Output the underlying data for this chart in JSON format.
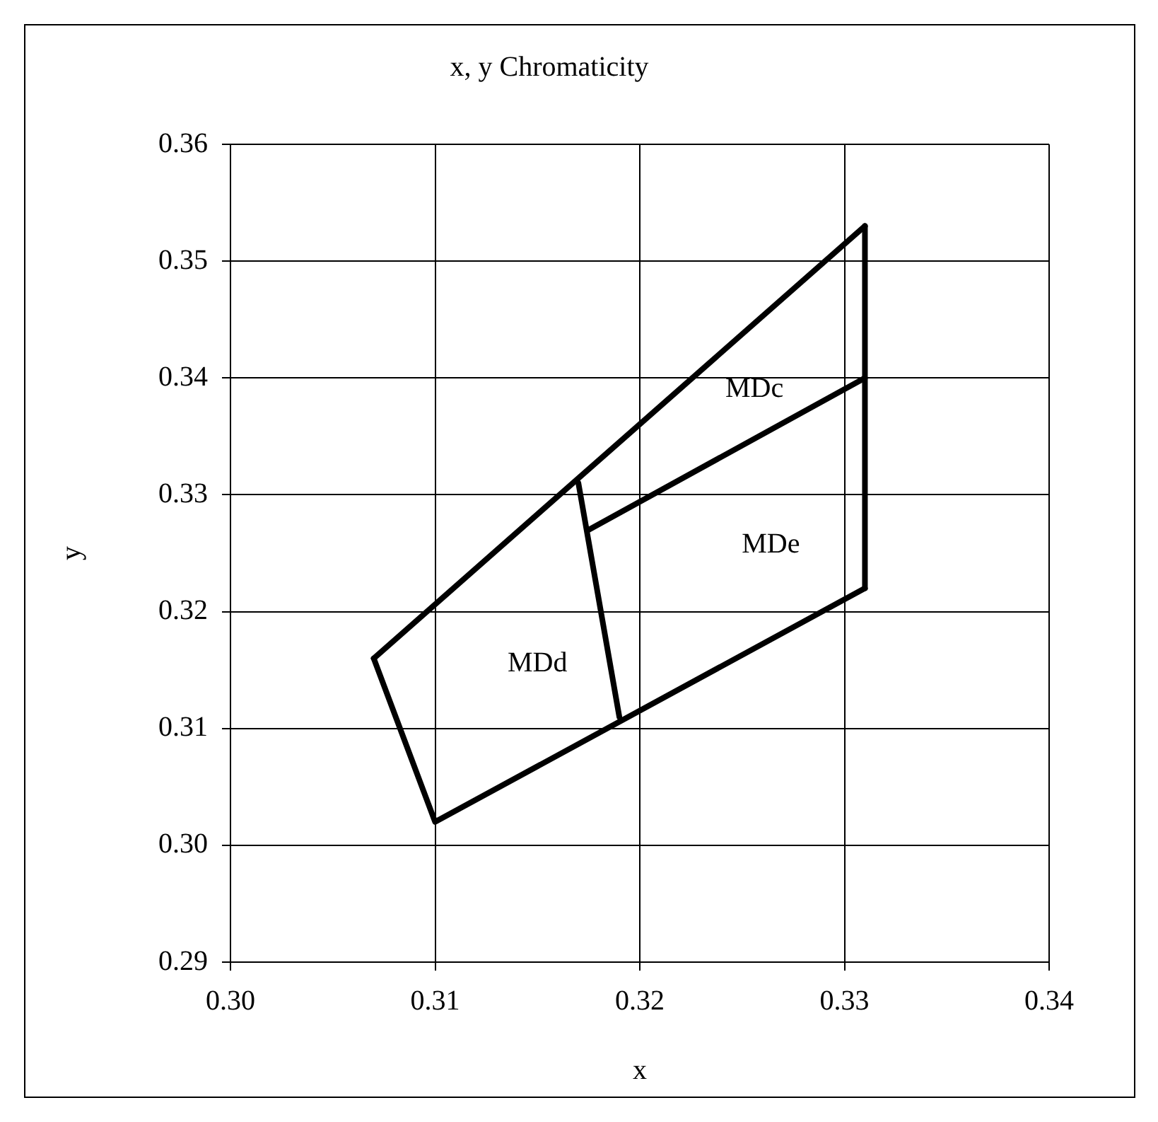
{
  "chart_data": {
    "type": "line",
    "title": "x, y Chromaticity",
    "xlabel": "x",
    "ylabel": "y",
    "series": [
      {
        "type": "line",
        "color": "#000000",
        "x": [
          0.307,
          0.331
        ],
        "values": [
          0.316,
          0.353
        ]
      },
      {
        "type": "line",
        "color": "#000000",
        "x": [
          0.307,
          0.31,
          0.331
        ],
        "values": [
          0.316,
          0.302,
          0.322
        ]
      },
      {
        "type": "line",
        "color": "#000000",
        "x": [
          0.331,
          0.331
        ],
        "values": [
          0.322,
          0.353
        ]
      },
      {
        "type": "line",
        "color": "#000000",
        "x": [
          0.317,
          0.319
        ],
        "values": [
          0.331,
          0.311
        ]
      },
      {
        "type": "line",
        "color": "#000000",
        "x": [
          0.3175,
          0.331
        ],
        "values": [
          0.327,
          0.34
        ]
      }
    ],
    "xlim": [
      0.3,
      0.34
    ],
    "xticks": [
      {
        "value": 0.3,
        "label": "0.30"
      },
      {
        "value": 0.31,
        "label": "0.31"
      },
      {
        "value": 0.32,
        "label": "0.32"
      },
      {
        "value": 0.33,
        "label": "0.33"
      },
      {
        "value": 0.34,
        "label": "0.34"
      }
    ],
    "ylim": [
      0.29,
      0.36
    ],
    "yticks": [
      {
        "value": 0.29,
        "label": "0.29"
      },
      {
        "value": 0.3,
        "label": "0.30"
      },
      {
        "value": 0.31,
        "label": "0.31"
      },
      {
        "value": 0.32,
        "label": "0.32"
      },
      {
        "value": 0.33,
        "label": "0.33"
      },
      {
        "value": 0.34,
        "label": "0.34"
      },
      {
        "value": 0.35,
        "label": "0.35"
      },
      {
        "value": 0.36,
        "label": "0.36"
      }
    ],
    "annotations": [
      "MDc",
      "MDe",
      "MDd"
    ],
    "grid": true,
    "legend": false,
    "marker": "none",
    "line_style": "solid"
  }
}
